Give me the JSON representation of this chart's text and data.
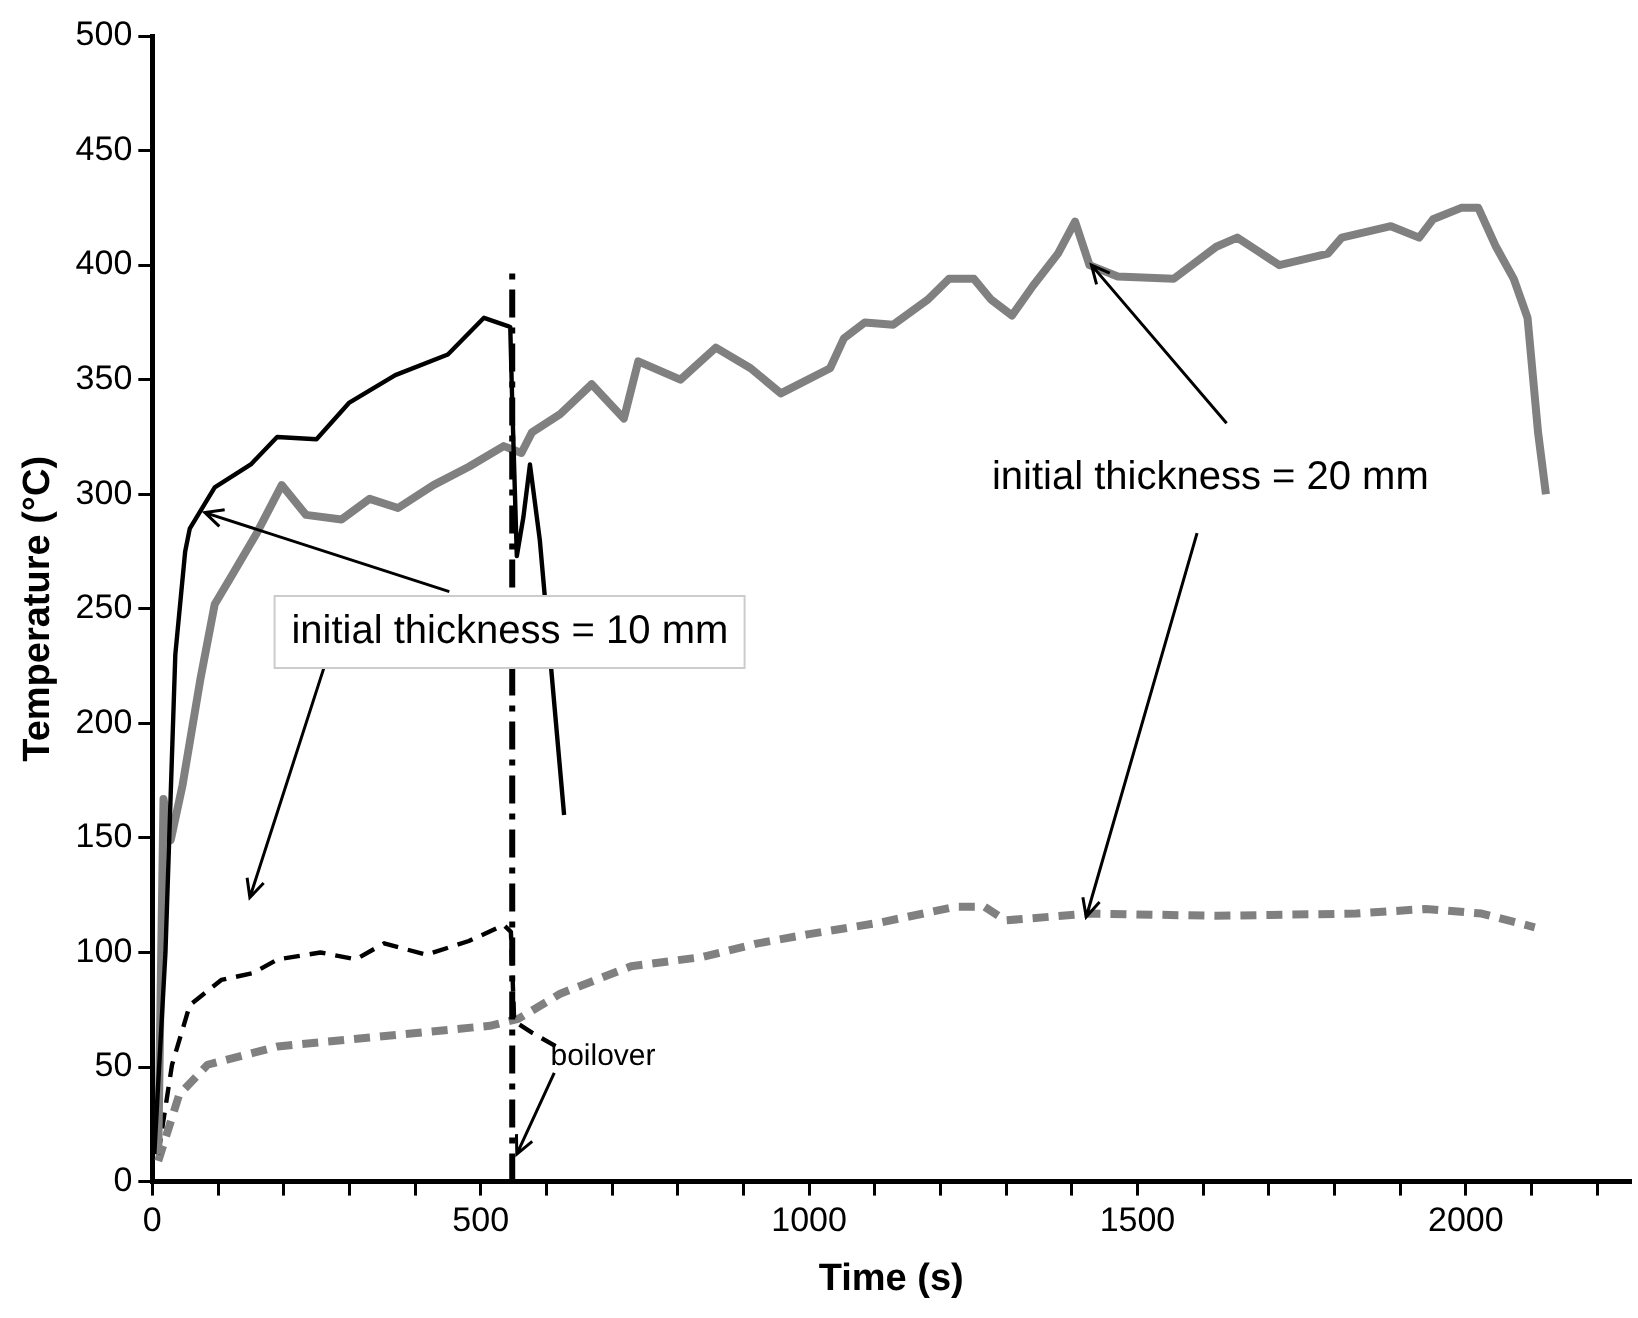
{
  "chart_data": {
    "type": "line",
    "xlabel": "Time (s)",
    "ylabel": "Temperature (°C)",
    "xlim": [
      0,
      2250
    ],
    "xticks": [
      0,
      {
        "value": 100,
        "label": null
      },
      {
        "value": 200,
        "label": null
      },
      {
        "value": 300,
        "label": null
      },
      {
        "value": 400,
        "label": null
      },
      500,
      {
        "value": 600,
        "label": null
      },
      {
        "value": 700,
        "label": null
      },
      {
        "value": 800,
        "label": null
      },
      {
        "value": 900,
        "label": null
      },
      1000,
      {
        "value": 1100,
        "label": null
      },
      {
        "value": 1200,
        "label": null
      },
      {
        "value": 1300,
        "label": null
      },
      {
        "value": 1400,
        "label": null
      },
      1500,
      {
        "value": 1600,
        "label": null
      },
      {
        "value": 1700,
        "label": null
      },
      {
        "value": 1800,
        "label": null
      },
      {
        "value": 1900,
        "label": null
      },
      2000,
      {
        "value": 2100,
        "label": null
      },
      {
        "value": 2200,
        "label": null
      }
    ],
    "ylim": [
      0,
      500
    ],
    "yticks": [
      0,
      50,
      100,
      150,
      200,
      250,
      300,
      350,
      400,
      450,
      500
    ],
    "grid": false,
    "legend": false,
    "marker": "none",
    "series": [
      {
        "color": "#000000",
        "line_style": "solid",
        "x": [
          3,
          20,
          35,
          50,
          57,
          95,
          150,
          190,
          250,
          300,
          370,
          450,
          505,
          545,
          548,
          555,
          565,
          575,
          590,
          627
        ],
        "values": [
          12,
          100,
          230,
          275,
          285,
          303,
          313,
          325,
          324,
          340,
          352,
          361,
          377,
          373,
          340,
          273,
          290,
          313,
          280,
          160
        ]
      },
      {
        "color": "#808080",
        "line_style": "solid",
        "x": [
          9,
          17,
          28,
          46,
          73,
          95,
          122,
          159,
          197,
          234,
          288,
          331,
          374,
          428,
          482,
          535,
          562,
          578,
          621,
          669,
          718,
          740,
          804,
          858,
          911,
          957,
          1032,
          1053,
          1085,
          1128,
          1181,
          1213,
          1251,
          1277,
          1309,
          1341,
          1379,
          1405,
          1427,
          1470,
          1555,
          1620,
          1652,
          1716,
          1790,
          1811,
          1886,
          1929,
          1950,
          1993,
          2019,
          2046,
          2073,
          2094,
          2110,
          2122
        ],
        "values": [
          12,
          167,
          149,
          173,
          219,
          252,
          265,
          283,
          304,
          291,
          289,
          298,
          294,
          304,
          312,
          321,
          318,
          327,
          335,
          348,
          333,
          358,
          350,
          364,
          355,
          344,
          355,
          368,
          375,
          374,
          385,
          394,
          394,
          385,
          378,
          391,
          405,
          419,
          400,
          395,
          394,
          408,
          412,
          400,
          405,
          412,
          417,
          412,
          420,
          425,
          425,
          408,
          394,
          377,
          327,
          300
        ]
      },
      {
        "color": "#000000",
        "line_style": "dashed",
        "x": [
          9,
          30,
          57,
          105,
          153,
          191,
          256,
          310,
          353,
          417,
          482,
          535,
          546,
          551,
          578,
          627
        ],
        "values": [
          12,
          51,
          77,
          88,
          91,
          97,
          100,
          97,
          104,
          99,
          105,
          112,
          109,
          70,
          65,
          57
        ]
      },
      {
        "color": "#808080",
        "line_style": "dashed",
        "x": [
          9,
          41,
          84,
          191,
          299,
          406,
          514,
          557,
          621,
          729,
          837,
          922,
          1000,
          1107,
          1224,
          1267,
          1299,
          1427,
          1620,
          1833,
          1939,
          2024,
          2105
        ],
        "values": [
          9,
          38,
          51,
          59,
          62,
          65,
          68,
          71,
          82,
          94,
          98,
          104,
          108,
          113,
          120,
          120,
          114,
          117,
          116,
          117,
          119,
          117,
          111
        ]
      }
    ],
    "ref_lines": [
      {
        "axis": "x",
        "value": 548,
        "color": "#000000",
        "line_style": "dashdot"
      }
    ],
    "annotations": [
      {
        "text": "initial thickness = 10 mm",
        "x": 80,
        "y": 292
      },
      {
        "text": "initial thickness = 20 mm",
        "x": 1430,
        "y": 400
      },
      {
        "text": "boilover",
        "x": 555,
        "y": 12
      }
    ]
  }
}
